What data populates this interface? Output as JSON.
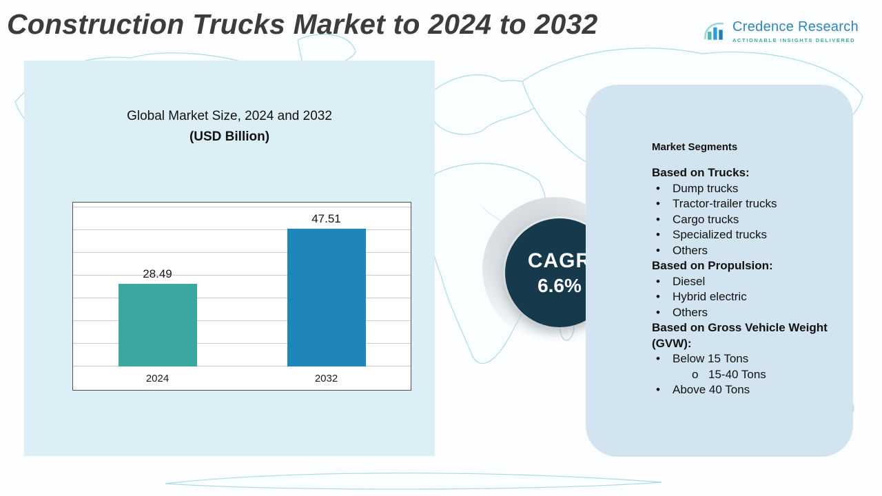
{
  "header": {
    "title": "Construction Trucks Market to 2024 to 2032",
    "logo": {
      "name": "Credence Research",
      "tagline": "Actionable Insights Delivered"
    }
  },
  "chart_panel": {
    "title_line1": "Global Market Size, 2024 and 2032",
    "title_line2": "(USD Billion)"
  },
  "chart_data": {
    "type": "bar",
    "title": "Global Market Size, 2024 and 2032 (USD Billion)",
    "categories": [
      "2024",
      "2032"
    ],
    "values": [
      28.49,
      47.51
    ],
    "xlabel": "",
    "ylabel": "",
    "ylim": [
      0,
      55
    ],
    "grid": true,
    "legend": false,
    "bar_colors": [
      "#3aa8a0",
      "#1e87b8"
    ]
  },
  "cagr": {
    "label": "CAGR",
    "value": "6.6%"
  },
  "segments": {
    "title": "Market Segments",
    "groups": [
      {
        "heading": "Based on Trucks:",
        "items": [
          {
            "text": "Dump trucks",
            "bullet": "•"
          },
          {
            "text": "Tractor-trailer trucks",
            "bullet": "•"
          },
          {
            "text": "Cargo trucks",
            "bullet": "•"
          },
          {
            "text": "Specialized trucks",
            "bullet": "•"
          },
          {
            "text": "Others",
            "bullet": "•"
          }
        ]
      },
      {
        "heading": "Based on Propulsion:",
        "items": [
          {
            "text": "Diesel",
            "bullet": "•"
          },
          {
            "text": "Hybrid electric",
            "bullet": "•"
          },
          {
            "text": "Others",
            "bullet": "•"
          }
        ]
      },
      {
        "heading": "Based on Gross Vehicle Weight (GVW):",
        "items": [
          {
            "text": "Below 15 Tons",
            "bullet": "•"
          },
          {
            "text": "15-40 Tons",
            "bullet": "o",
            "sub": true
          },
          {
            "text": "Above 40 Tons",
            "bullet": "•"
          }
        ]
      }
    ]
  },
  "colors": {
    "left_panel_bg": "#dceef6",
    "right_panel_bg": "#d2e4f0",
    "cagr_circle_bg": "#16394c",
    "bar_2024": "#3aa8a0",
    "bar_2032": "#1e87b8",
    "map_stroke": "#a9dbe4",
    "title_text": "#3c3c3c",
    "logo_blue": "#2e86b5",
    "logo_teal": "#3aa89f"
  }
}
